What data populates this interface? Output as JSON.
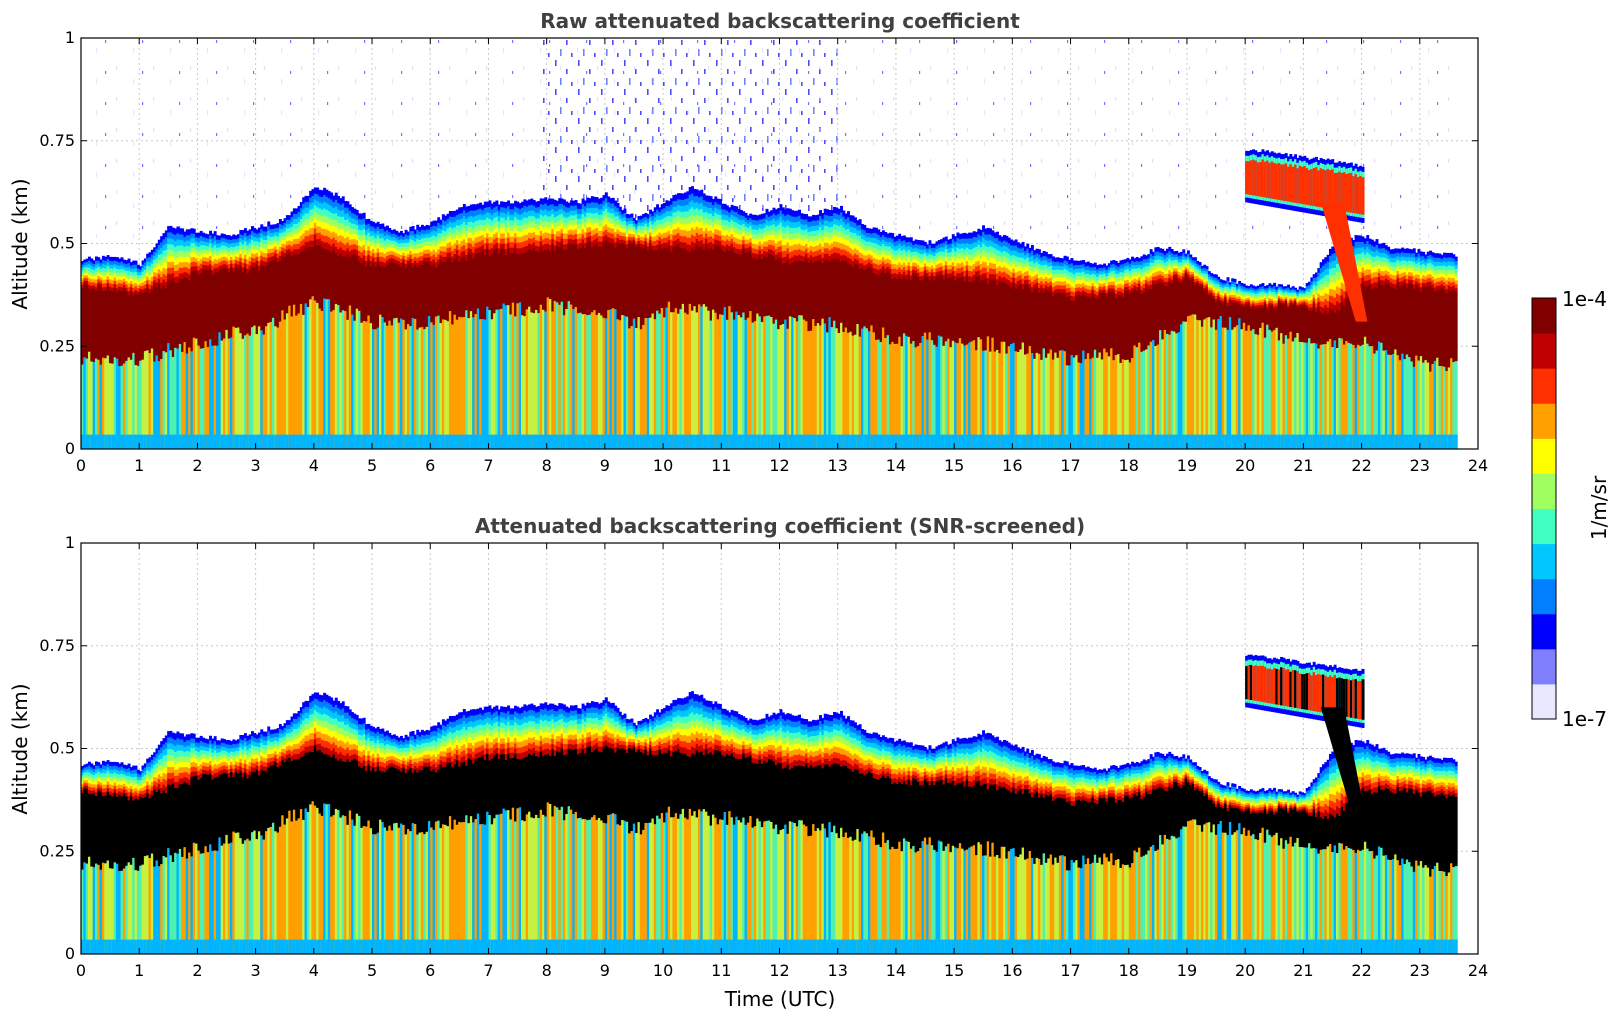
{
  "chart_data": [
    {
      "type": "heatmap",
      "title": "Raw attenuated backscattering coefficient",
      "ylabel": "Altitude (km)",
      "xlabel": "",
      "xlim": [
        0,
        24
      ],
      "ylim": [
        0,
        1
      ],
      "x_ticks": [
        "0",
        "1",
        "2",
        "3",
        "4",
        "5",
        "6",
        "7",
        "8",
        "9",
        "10",
        "11",
        "12",
        "13",
        "14",
        "15",
        "16",
        "17",
        "18",
        "19",
        "20",
        "21",
        "22",
        "23",
        "24"
      ],
      "y_ticks": [
        "0",
        "0.25",
        "0.5",
        "0.75",
        "1"
      ],
      "data_end_time": 23.6,
      "grid": true,
      "screened": false,
      "layer_top_km": [
        {
          "t": 0.0,
          "z": 0.46
        },
        {
          "t": 0.5,
          "z": 0.47
        },
        {
          "t": 1.0,
          "z": 0.45
        },
        {
          "t": 1.5,
          "z": 0.54
        },
        {
          "t": 2.0,
          "z": 0.53
        },
        {
          "t": 2.5,
          "z": 0.52
        },
        {
          "t": 3.0,
          "z": 0.54
        },
        {
          "t": 3.5,
          "z": 0.56
        },
        {
          "t": 4.0,
          "z": 0.64
        },
        {
          "t": 4.5,
          "z": 0.61
        },
        {
          "t": 5.0,
          "z": 0.55
        },
        {
          "t": 5.5,
          "z": 0.53
        },
        {
          "t": 6.0,
          "z": 0.55
        },
        {
          "t": 6.5,
          "z": 0.59
        },
        {
          "t": 7.0,
          "z": 0.6
        },
        {
          "t": 7.5,
          "z": 0.6
        },
        {
          "t": 8.0,
          "z": 0.61
        },
        {
          "t": 8.5,
          "z": 0.6
        },
        {
          "t": 9.0,
          "z": 0.62
        },
        {
          "t": 9.5,
          "z": 0.56
        },
        {
          "t": 10.0,
          "z": 0.6
        },
        {
          "t": 10.5,
          "z": 0.64
        },
        {
          "t": 11.0,
          "z": 0.6
        },
        {
          "t": 11.5,
          "z": 0.57
        },
        {
          "t": 12.0,
          "z": 0.59
        },
        {
          "t": 12.5,
          "z": 0.57
        },
        {
          "t": 13.0,
          "z": 0.59
        },
        {
          "t": 13.5,
          "z": 0.54
        },
        {
          "t": 14.0,
          "z": 0.52
        },
        {
          "t": 14.5,
          "z": 0.5
        },
        {
          "t": 15.0,
          "z": 0.52
        },
        {
          "t": 15.5,
          "z": 0.54
        },
        {
          "t": 16.0,
          "z": 0.51
        },
        {
          "t": 16.5,
          "z": 0.48
        },
        {
          "t": 17.0,
          "z": 0.46
        },
        {
          "t": 17.5,
          "z": 0.45
        },
        {
          "t": 18.0,
          "z": 0.46
        },
        {
          "t": 18.5,
          "z": 0.49
        },
        {
          "t": 19.0,
          "z": 0.48
        },
        {
          "t": 19.5,
          "z": 0.42
        },
        {
          "t": 20.0,
          "z": 0.4
        },
        {
          "t": 20.5,
          "z": 0.4
        },
        {
          "t": 21.0,
          "z": 0.39
        },
        {
          "t": 21.5,
          "z": 0.5
        },
        {
          "t": 22.0,
          "z": 0.52
        },
        {
          "t": 22.5,
          "z": 0.49
        },
        {
          "t": 23.0,
          "z": 0.48
        },
        {
          "t": 23.6,
          "z": 0.47
        }
      ],
      "core_top_km": [
        {
          "t": 0.0,
          "z": 0.4
        },
        {
          "t": 1.0,
          "z": 0.38
        },
        {
          "t": 2.0,
          "z": 0.43
        },
        {
          "t": 3.0,
          "z": 0.44
        },
        {
          "t": 4.0,
          "z": 0.5
        },
        {
          "t": 5.0,
          "z": 0.45
        },
        {
          "t": 6.0,
          "z": 0.45
        },
        {
          "t": 7.0,
          "z": 0.48
        },
        {
          "t": 8.0,
          "z": 0.49
        },
        {
          "t": 9.0,
          "z": 0.5
        },
        {
          "t": 10.0,
          "z": 0.49
        },
        {
          "t": 11.0,
          "z": 0.49
        },
        {
          "t": 12.0,
          "z": 0.46
        },
        {
          "t": 13.0,
          "z": 0.46
        },
        {
          "t": 14.0,
          "z": 0.42
        },
        {
          "t": 15.0,
          "z": 0.42
        },
        {
          "t": 16.0,
          "z": 0.4
        },
        {
          "t": 17.0,
          "z": 0.37
        },
        {
          "t": 18.0,
          "z": 0.38
        },
        {
          "t": 19.0,
          "z": 0.42
        },
        {
          "t": 19.5,
          "z": 0.36
        },
        {
          "t": 20.0,
          "z": 0.35
        },
        {
          "t": 21.0,
          "z": 0.35
        },
        {
          "t": 21.5,
          "z": 0.33
        },
        {
          "t": 22.0,
          "z": 0.4
        },
        {
          "t": 22.5,
          "z": 0.4
        },
        {
          "t": 23.0,
          "z": 0.39
        },
        {
          "t": 23.6,
          "z": 0.39
        }
      ],
      "core_bottom_km": [
        {
          "t": 0.0,
          "z": 0.22
        },
        {
          "t": 1.0,
          "z": 0.22
        },
        {
          "t": 2.0,
          "z": 0.26
        },
        {
          "t": 3.0,
          "z": 0.29
        },
        {
          "t": 4.0,
          "z": 0.36
        },
        {
          "t": 5.0,
          "z": 0.31
        },
        {
          "t": 6.0,
          "z": 0.31
        },
        {
          "t": 7.0,
          "z": 0.33
        },
        {
          "t": 8.0,
          "z": 0.35
        },
        {
          "t": 9.0,
          "z": 0.33
        },
        {
          "t": 9.5,
          "z": 0.3
        },
        {
          "t": 10.0,
          "z": 0.34
        },
        {
          "t": 11.0,
          "z": 0.33
        },
        {
          "t": 12.0,
          "z": 0.31
        },
        {
          "t": 13.0,
          "z": 0.3
        },
        {
          "t": 14.0,
          "z": 0.27
        },
        {
          "t": 15.0,
          "z": 0.26
        },
        {
          "t": 16.0,
          "z": 0.25
        },
        {
          "t": 17.0,
          "z": 0.22
        },
        {
          "t": 18.0,
          "z": 0.23
        },
        {
          "t": 19.0,
          "z": 0.31
        },
        {
          "t": 20.0,
          "z": 0.3
        },
        {
          "t": 21.0,
          "z": 0.26
        },
        {
          "t": 21.5,
          "z": 0.25
        },
        {
          "t": 22.0,
          "z": 0.26
        },
        {
          "t": 22.5,
          "z": 0.23
        },
        {
          "t": 23.0,
          "z": 0.21
        },
        {
          "t": 23.6,
          "z": 0.2
        }
      ],
      "elevated_layer": {
        "t_start": 20.0,
        "t_end": 22.0,
        "z_top": 0.73,
        "z_bottom": 0.6
      },
      "noise_window_utc": [
        7.5,
        12.0
      ]
    },
    {
      "type": "heatmap",
      "title": "Attenuated backscattering coefficient (SNR-screened)",
      "ylabel": "Altitude (km)",
      "xlabel": "Time (UTC)",
      "xlim": [
        0,
        24
      ],
      "ylim": [
        0,
        1
      ],
      "x_ticks": [
        "0",
        "1",
        "2",
        "3",
        "4",
        "5",
        "6",
        "7",
        "8",
        "9",
        "10",
        "11",
        "12",
        "13",
        "14",
        "15",
        "16",
        "17",
        "18",
        "19",
        "20",
        "21",
        "22",
        "23",
        "24"
      ],
      "y_ticks": [
        "0",
        "0.25",
        "0.5",
        "0.75",
        "1"
      ],
      "data_end_time": 23.6,
      "grid": true,
      "screened": true,
      "saturated_color": "#000000"
    }
  ],
  "colorbar": {
    "label": "1/m/sr",
    "min_label": "1e-7",
    "max_label": "1e-4",
    "colormap": [
      "#e8e8ff",
      "#8080ff",
      "#0000ff",
      "#0080ff",
      "#00c8ff",
      "#40ffc0",
      "#a0ff60",
      "#ffff00",
      "#ffa000",
      "#ff3000",
      "#c00000",
      "#800000"
    ]
  }
}
